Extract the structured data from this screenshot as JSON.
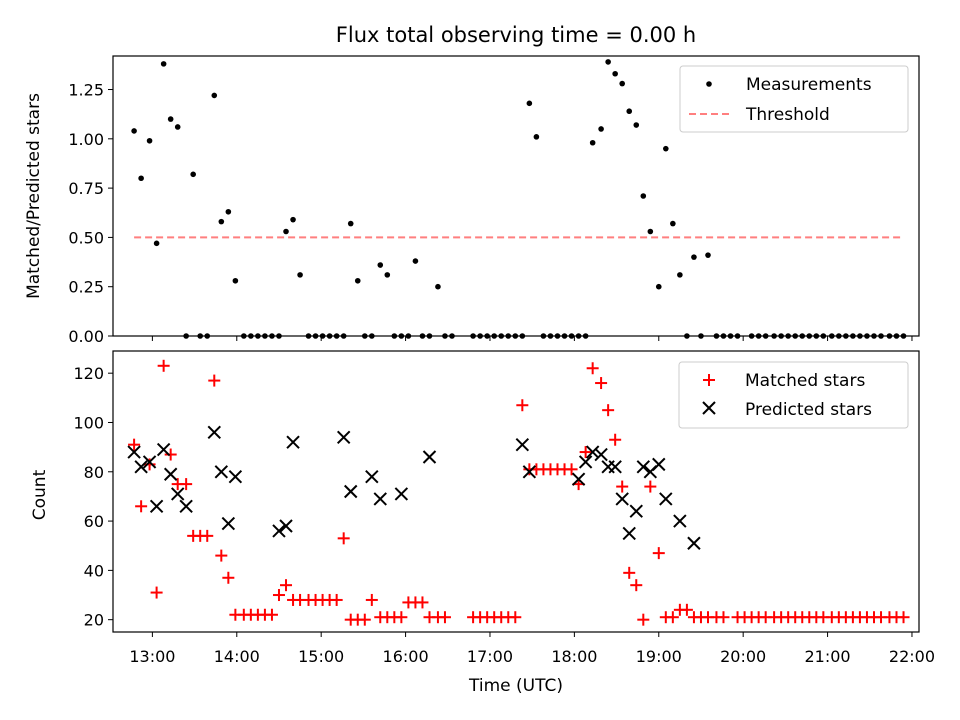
{
  "chart_data": [
    {
      "type": "scatter",
      "title": "Flux total observing time = 0.00 h",
      "xlabel": "",
      "ylabel": "Matched/Predicted stars",
      "xlim": [
        "12:32",
        "22:05"
      ],
      "ylim": [
        0,
        1.42
      ],
      "yticks": [
        0,
        0.25,
        0.5,
        0.75,
        1.0,
        1.25
      ],
      "ytick_labels": [
        "0.00",
        "0.25",
        "0.50",
        "0.75",
        "1.00",
        "1.25"
      ],
      "legend_placement": "top-right",
      "series": [
        {
          "name": "Measurements",
          "marker": "dot",
          "color": "#000000",
          "points": [
            [
              "12:47",
              1.04
            ],
            [
              "12:52",
              0.8
            ],
            [
              "12:58",
              0.99
            ],
            [
              "13:03",
              0.47
            ],
            [
              "13:08",
              1.38
            ],
            [
              "13:13",
              1.1
            ],
            [
              "13:18",
              1.06
            ],
            [
              "13:24",
              0
            ],
            [
              "13:29",
              0.82
            ],
            [
              "13:34",
              0
            ],
            [
              "13:39",
              0
            ],
            [
              "13:44",
              1.22
            ],
            [
              "13:49",
              0.58
            ],
            [
              "13:54",
              0.63
            ],
            [
              "13:59",
              0.28
            ],
            [
              "14:05",
              0
            ],
            [
              "14:10",
              0
            ],
            [
              "14:15",
              0
            ],
            [
              "14:20",
              0
            ],
            [
              "14:25",
              0
            ],
            [
              "14:30",
              0
            ],
            [
              "14:35",
              0.53
            ],
            [
              "14:40",
              0.59
            ],
            [
              "14:45",
              0.31
            ],
            [
              "14:51",
              0
            ],
            [
              "14:56",
              0
            ],
            [
              "15:01",
              0
            ],
            [
              "15:06",
              0
            ],
            [
              "15:11",
              0
            ],
            [
              "15:16",
              0
            ],
            [
              "15:21",
              0.57
            ],
            [
              "15:26",
              0.28
            ],
            [
              "15:31",
              0
            ],
            [
              "15:36",
              0
            ],
            [
              "15:42",
              0.36
            ],
            [
              "15:47",
              0.31
            ],
            [
              "15:52",
              0
            ],
            [
              "15:57",
              0
            ],
            [
              "16:02",
              0
            ],
            [
              "16:07",
              0.38
            ],
            [
              "16:12",
              0
            ],
            [
              "16:17",
              0
            ],
            [
              "16:23",
              0.25
            ],
            [
              "16:28",
              0
            ],
            [
              "16:33",
              0
            ],
            [
              "16:48",
              0
            ],
            [
              "16:53",
              0
            ],
            [
              "16:58",
              0
            ],
            [
              "17:03",
              0
            ],
            [
              "17:08",
              0
            ],
            [
              "17:13",
              0
            ],
            [
              "17:18",
              0
            ],
            [
              "17:23",
              0
            ],
            [
              "17:28",
              1.18
            ],
            [
              "17:33",
              1.01
            ],
            [
              "17:38",
              0
            ],
            [
              "17:43",
              0
            ],
            [
              "17:48",
              0
            ],
            [
              "17:53",
              0
            ],
            [
              "17:58",
              0
            ],
            [
              "18:03",
              0
            ],
            [
              "18:08",
              0
            ],
            [
              "18:13",
              0.98
            ],
            [
              "18:19",
              1.05
            ],
            [
              "18:24",
              1.39
            ],
            [
              "18:29",
              1.33
            ],
            [
              "18:34",
              1.28
            ],
            [
              "18:39",
              1.14
            ],
            [
              "18:44",
              1.07
            ],
            [
              "18:49",
              0.71
            ],
            [
              "18:54",
              0.53
            ],
            [
              "19:00",
              0.25
            ],
            [
              "19:05",
              0.95
            ],
            [
              "19:10",
              0.57
            ],
            [
              "19:15",
              0.31
            ],
            [
              "19:20",
              0
            ],
            [
              "19:25",
              0.4
            ],
            [
              "19:30",
              0
            ],
            [
              "19:35",
              0.41
            ],
            [
              "19:41",
              0
            ],
            [
              "19:46",
              0
            ],
            [
              "19:51",
              0
            ],
            [
              "19:56",
              0
            ],
            [
              "20:06",
              0
            ],
            [
              "20:11",
              0
            ],
            [
              "20:16",
              0
            ],
            [
              "20:22",
              0
            ],
            [
              "20:27",
              0
            ],
            [
              "20:32",
              0
            ],
            [
              "20:37",
              0
            ],
            [
              "20:42",
              0
            ],
            [
              "20:47",
              0
            ],
            [
              "20:52",
              0
            ],
            [
              "20:57",
              0
            ],
            [
              "21:03",
              0
            ],
            [
              "21:08",
              0
            ],
            [
              "21:13",
              0
            ],
            [
              "21:18",
              0
            ],
            [
              "21:23",
              0
            ],
            [
              "21:28",
              0
            ],
            [
              "21:33",
              0
            ],
            [
              "21:38",
              0
            ],
            [
              "21:44",
              0
            ],
            [
              "21:49",
              0
            ],
            [
              "21:54",
              0
            ]
          ]
        },
        {
          "name": "Threshold",
          "marker": "dashed-line",
          "color": "#ff7f7f",
          "points": [
            [
              "12:47",
              0.5
            ],
            [
              "21:54",
              0.5
            ]
          ]
        }
      ]
    },
    {
      "type": "scatter",
      "title": "",
      "xlabel": "Time (UTC)",
      "ylabel": "Count",
      "xlim": [
        "12:32",
        "22:05"
      ],
      "ylim": [
        15,
        129
      ],
      "yticks": [
        20,
        40,
        60,
        80,
        100,
        120
      ],
      "ytick_labels": [
        "20",
        "40",
        "60",
        "80",
        "100",
        "120"
      ],
      "xticks": [
        "13:00",
        "14:00",
        "15:00",
        "16:00",
        "17:00",
        "18:00",
        "19:00",
        "20:00",
        "21:00",
        "22:00"
      ],
      "legend_placement": "top-right",
      "series": [
        {
          "name": "Matched stars",
          "marker": "plus",
          "color": "#ff0000",
          "points": [
            [
              "12:47",
              91
            ],
            [
              "12:52",
              66
            ],
            [
              "12:58",
              83
            ],
            [
              "13:03",
              31
            ],
            [
              "13:08",
              123
            ],
            [
              "13:13",
              87
            ],
            [
              "13:18",
              75
            ],
            [
              "13:24",
              75
            ],
            [
              "13:29",
              54
            ],
            [
              "13:34",
              54
            ],
            [
              "13:39",
              54
            ],
            [
              "13:44",
              117
            ],
            [
              "13:49",
              46
            ],
            [
              "13:54",
              37
            ],
            [
              "13:59",
              22
            ],
            [
              "14:05",
              22
            ],
            [
              "14:10",
              22
            ],
            [
              "14:15",
              22
            ],
            [
              "14:20",
              22
            ],
            [
              "14:25",
              22
            ],
            [
              "14:30",
              30
            ],
            [
              "14:35",
              34
            ],
            [
              "14:40",
              28
            ],
            [
              "14:45",
              28
            ],
            [
              "14:51",
              28
            ],
            [
              "14:56",
              28
            ],
            [
              "15:01",
              28
            ],
            [
              "15:06",
              28
            ],
            [
              "15:11",
              28
            ],
            [
              "15:16",
              53
            ],
            [
              "15:21",
              20
            ],
            [
              "15:26",
              20
            ],
            [
              "15:31",
              20
            ],
            [
              "15:36",
              28
            ],
            [
              "15:42",
              21
            ],
            [
              "15:47",
              21
            ],
            [
              "15:52",
              21
            ],
            [
              "15:57",
              21
            ],
            [
              "16:02",
              27
            ],
            [
              "16:07",
              27
            ],
            [
              "16:12",
              27
            ],
            [
              "16:17",
              21
            ],
            [
              "16:23",
              21
            ],
            [
              "16:28",
              21
            ],
            [
              "16:48",
              21
            ],
            [
              "16:53",
              21
            ],
            [
              "16:58",
              21
            ],
            [
              "17:03",
              21
            ],
            [
              "17:08",
              21
            ],
            [
              "17:13",
              21
            ],
            [
              "17:18",
              21
            ],
            [
              "17:23",
              107
            ],
            [
              "17:28",
              81
            ],
            [
              "17:33",
              81
            ],
            [
              "17:38",
              81
            ],
            [
              "17:43",
              81
            ],
            [
              "17:48",
              81
            ],
            [
              "17:53",
              81
            ],
            [
              "17:58",
              81
            ],
            [
              "18:03",
              75
            ],
            [
              "18:08",
              88
            ],
            [
              "18:13",
              122
            ],
            [
              "18:19",
              116
            ],
            [
              "18:24",
              105
            ],
            [
              "18:29",
              93
            ],
            [
              "18:34",
              74
            ],
            [
              "18:39",
              39
            ],
            [
              "18:44",
              34
            ],
            [
              "18:49",
              20
            ],
            [
              "18:54",
              74
            ],
            [
              "19:00",
              47
            ],
            [
              "19:05",
              21
            ],
            [
              "19:10",
              21
            ],
            [
              "19:15",
              24
            ],
            [
              "19:20",
              24
            ],
            [
              "19:25",
              21
            ],
            [
              "19:30",
              21
            ],
            [
              "19:35",
              21
            ],
            [
              "19:41",
              21
            ],
            [
              "19:46",
              21
            ],
            [
              "19:56",
              21
            ],
            [
              "20:01",
              21
            ],
            [
              "20:06",
              21
            ],
            [
              "20:11",
              21
            ],
            [
              "20:16",
              21
            ],
            [
              "20:22",
              21
            ],
            [
              "20:27",
              21
            ],
            [
              "20:32",
              21
            ],
            [
              "20:37",
              21
            ],
            [
              "20:42",
              21
            ],
            [
              "20:47",
              21
            ],
            [
              "20:52",
              21
            ],
            [
              "20:57",
              21
            ],
            [
              "21:03",
              21
            ],
            [
              "21:08",
              21
            ],
            [
              "21:13",
              21
            ],
            [
              "21:18",
              21
            ],
            [
              "21:23",
              21
            ],
            [
              "21:28",
              21
            ],
            [
              "21:33",
              21
            ],
            [
              "21:38",
              21
            ],
            [
              "21:44",
              21
            ],
            [
              "21:49",
              21
            ],
            [
              "21:54",
              21
            ]
          ]
        },
        {
          "name": "Predicted stars",
          "marker": "x",
          "color": "#000000",
          "points": [
            [
              "12:47",
              88
            ],
            [
              "12:52",
              82
            ],
            [
              "12:58",
              84
            ],
            [
              "13:03",
              66
            ],
            [
              "13:08",
              89
            ],
            [
              "13:13",
              79
            ],
            [
              "13:18",
              71
            ],
            [
              "13:24",
              66
            ],
            [
              "13:44",
              96
            ],
            [
              "13:49",
              80
            ],
            [
              "13:54",
              59
            ],
            [
              "13:59",
              78
            ],
            [
              "14:30",
              56
            ],
            [
              "14:35",
              58
            ],
            [
              "14:40",
              92
            ],
            [
              "15:16",
              94
            ],
            [
              "15:21",
              72
            ],
            [
              "15:36",
              78
            ],
            [
              "15:42",
              69
            ],
            [
              "15:57",
              71
            ],
            [
              "16:17",
              86
            ],
            [
              "17:23",
              91
            ],
            [
              "17:28",
              80
            ],
            [
              "18:03",
              77
            ],
            [
              "18:08",
              84
            ],
            [
              "18:13",
              88
            ],
            [
              "18:19",
              87
            ],
            [
              "18:24",
              82
            ],
            [
              "18:29",
              82
            ],
            [
              "18:34",
              69
            ],
            [
              "18:39",
              55
            ],
            [
              "18:44",
              64
            ],
            [
              "18:49",
              82
            ],
            [
              "18:54",
              80
            ],
            [
              "19:00",
              83
            ],
            [
              "19:05",
              69
            ],
            [
              "19:15",
              60
            ],
            [
              "19:25",
              51
            ]
          ]
        }
      ]
    }
  ]
}
